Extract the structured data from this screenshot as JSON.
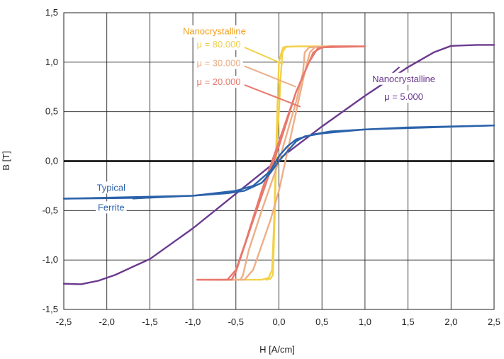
{
  "chart_data": {
    "type": "line",
    "xlabel": "H [A/cm]",
    "ylabel": "B [T]",
    "xlim": [
      -2.5,
      2.5
    ],
    "ylim": [
      -1.5,
      1.5
    ],
    "xticks": [
      -2.5,
      -2.0,
      -1.5,
      -1.0,
      -0.5,
      0.0,
      0.5,
      1.0,
      1.5,
      2.0,
      2.5
    ],
    "yticks": [
      -1.5,
      -1.0,
      -0.5,
      0.0,
      0.5,
      1.0,
      1.5
    ],
    "xtick_labels": [
      "-2,5",
      "-2,0",
      "-1,5",
      "-1,0",
      "-0,5",
      "0,0",
      "0,5",
      "1,0",
      "1,5",
      "2,0",
      "2,5"
    ],
    "ytick_labels": [
      "-1,5",
      "-1,0",
      "-0,5",
      "0,0",
      "0,5",
      "1,0",
      "1,5"
    ],
    "grid": true,
    "series": [
      {
        "color": "#6b3a8f",
        "points": [
          [
            -2.5,
            -1.24
          ],
          [
            -2.3,
            -1.245
          ],
          [
            -2.1,
            -1.21
          ],
          [
            -1.9,
            -1.15
          ],
          [
            -1.7,
            -1.07
          ],
          [
            -1.5,
            -0.99
          ],
          [
            -1.0,
            -0.68
          ],
          [
            -0.5,
            -0.33
          ],
          [
            0.0,
            0.02
          ],
          [
            0.5,
            0.35
          ],
          [
            1.0,
            0.66
          ],
          [
            1.5,
            0.95
          ],
          [
            1.8,
            1.1
          ],
          [
            2.0,
            1.165
          ],
          [
            2.3,
            1.175
          ],
          [
            2.5,
            1.175
          ]
        ]
      },
      {
        "color": "#f3d14a",
        "points": [
          [
            -0.15,
            -1.2
          ],
          [
            -0.1,
            -1.19
          ],
          [
            -0.07,
            -1.15
          ],
          [
            -0.05,
            -0.6
          ],
          [
            -0.03,
            0.1
          ],
          [
            0.0,
            0.5
          ],
          [
            0.02,
            0.85
          ],
          [
            0.04,
            1.1
          ],
          [
            0.08,
            1.155
          ],
          [
            0.2,
            1.16
          ],
          [
            0.6,
            1.16
          ]
        ]
      },
      {
        "color": "#f3d14a",
        "points": [
          [
            -0.6,
            -1.2
          ],
          [
            -0.2,
            -1.2
          ],
          [
            -0.12,
            -1.18
          ],
          [
            -0.08,
            -1.1
          ],
          [
            -0.06,
            -0.7
          ],
          [
            -0.04,
            -0.1
          ],
          [
            -0.02,
            0.5
          ],
          [
            0.0,
            1.0
          ],
          [
            0.03,
            1.1
          ],
          [
            0.05,
            1.15
          ],
          [
            0.1,
            1.16
          ]
        ]
      },
      {
        "color": "#eeae86",
        "points": [
          [
            -0.7,
            -1.2
          ],
          [
            -0.4,
            -1.2
          ],
          [
            -0.3,
            -1.1
          ],
          [
            -0.1,
            -0.6
          ],
          [
            0.0,
            -0.3
          ],
          [
            0.1,
            0.1
          ],
          [
            0.2,
            0.5
          ],
          [
            0.3,
            0.9
          ],
          [
            0.36,
            1.1
          ],
          [
            0.42,
            1.155
          ],
          [
            0.6,
            1.16
          ],
          [
            0.9,
            1.16
          ]
        ]
      },
      {
        "color": "#eeae86",
        "points": [
          [
            -0.8,
            -1.2
          ],
          [
            -0.45,
            -1.2
          ],
          [
            -0.42,
            -1.16
          ],
          [
            -0.35,
            -0.9
          ],
          [
            -0.2,
            -0.5
          ],
          [
            0.0,
            0.0
          ],
          [
            0.1,
            0.3
          ],
          [
            0.2,
            0.6
          ],
          [
            0.28,
            0.9
          ],
          [
            0.3,
            1.1
          ],
          [
            0.35,
            1.15
          ],
          [
            0.6,
            1.16
          ]
        ]
      },
      {
        "color": "#e8786c",
        "points": [
          [
            -0.95,
            -1.2
          ],
          [
            -0.55,
            -1.2
          ],
          [
            -0.5,
            -1.12
          ],
          [
            -0.3,
            -0.6
          ],
          [
            -0.1,
            -0.1
          ],
          [
            0.0,
            0.15
          ],
          [
            0.2,
            0.7
          ],
          [
            0.35,
            1.0
          ],
          [
            0.45,
            1.14
          ],
          [
            0.6,
            1.16
          ],
          [
            1.0,
            1.16
          ]
        ]
      },
      {
        "color": "#e8786c",
        "points": [
          [
            -0.95,
            -1.2
          ],
          [
            -0.6,
            -1.2
          ],
          [
            -0.5,
            -1.1
          ],
          [
            -0.4,
            -0.85
          ],
          [
            -0.2,
            -0.3
          ],
          [
            0.0,
            0.2
          ],
          [
            0.2,
            0.7
          ],
          [
            0.3,
            0.9
          ],
          [
            0.4,
            1.1
          ],
          [
            0.5,
            1.15
          ],
          [
            1.0,
            1.16
          ]
        ]
      },
      {
        "color": "#2b62aa",
        "points": [
          [
            -2.5,
            -0.38
          ],
          [
            -2.0,
            -0.375
          ],
          [
            -1.5,
            -0.37
          ],
          [
            -1.0,
            -0.35
          ],
          [
            -0.6,
            -0.325
          ],
          [
            -0.4,
            -0.3
          ],
          [
            -0.2,
            -0.22
          ],
          [
            -0.1,
            -0.12
          ],
          [
            0.0,
            0.0
          ],
          [
            0.1,
            0.1
          ],
          [
            0.2,
            0.2
          ],
          [
            0.3,
            0.25
          ],
          [
            0.5,
            0.28
          ],
          [
            1.0,
            0.32
          ],
          [
            1.5,
            0.34
          ],
          [
            2.0,
            0.35
          ],
          [
            2.5,
            0.36
          ]
        ]
      },
      {
        "color": "#2b62aa",
        "points": [
          [
            -2.5,
            -0.38
          ],
          [
            -1.0,
            -0.35
          ],
          [
            -0.5,
            -0.3
          ],
          [
            -0.3,
            -0.25
          ],
          [
            -0.1,
            -0.1
          ],
          [
            0.0,
            0.05
          ],
          [
            0.1,
            0.15
          ],
          [
            0.2,
            0.22
          ],
          [
            0.4,
            0.27
          ],
          [
            0.6,
            0.3
          ],
          [
            1.0,
            0.32
          ],
          [
            2.5,
            0.36
          ]
        ]
      }
    ],
    "annotations": [
      {
        "text": "Nanocrystalline",
        "color": "#f0a020",
        "anchor": "middle",
        "x": -0.75,
        "y": 1.28
      },
      {
        "text": "μ = 80.000",
        "color": "#f0d050",
        "anchor": "middle",
        "x": -0.7,
        "y": 1.15
      },
      {
        "text": "μ = 30.000",
        "color": "#eeae86",
        "anchor": "middle",
        "x": -0.7,
        "y": 0.96
      },
      {
        "text": "μ = 20.000",
        "color": "#e8786c",
        "anchor": "middle",
        "x": -0.7,
        "y": 0.77
      },
      {
        "text": "Nanocrystalline",
        "color": "#6b3a8f",
        "anchor": "middle",
        "x": 1.45,
        "y": 0.8
      },
      {
        "text": "μ = 5.000",
        "color": "#6b3a8f",
        "anchor": "middle",
        "x": 1.45,
        "y": 0.62
      },
      {
        "text": "Typical",
        "color": "#2b62aa",
        "anchor": "middle",
        "x": -1.95,
        "y": -0.3
      },
      {
        "text": "Ferrite",
        "color": "#2b62aa",
        "anchor": "middle",
        "x": -1.95,
        "y": -0.5
      }
    ],
    "callouts": [
      {
        "color": "#f3d14a",
        "from": [
          -0.4,
          1.15
        ],
        "to": [
          0.05,
          0.98
        ]
      },
      {
        "color": "#eeae86",
        "from": [
          -0.4,
          0.96
        ],
        "to": [
          0.2,
          0.75
        ]
      },
      {
        "color": "#e8786c",
        "from": [
          -0.4,
          0.77
        ],
        "to": [
          0.25,
          0.55
        ]
      },
      {
        "color": "#6b3a8f",
        "from": [
          1.2,
          0.8
        ],
        "to": [
          1.4,
          0.95
        ]
      },
      {
        "color": "#2b62aa",
        "from": [
          -1.7,
          -0.38
        ],
        "to": [
          -1.2,
          -0.355
        ]
      }
    ]
  }
}
